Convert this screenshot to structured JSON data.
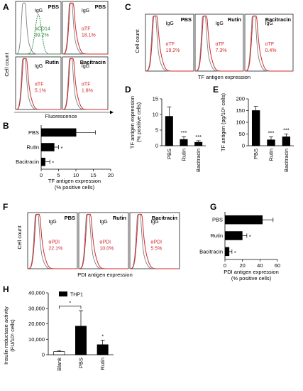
{
  "colors": {
    "red": "#d0282c",
    "green": "#2e8b3e",
    "black": "#000000",
    "gray": "#7f7f7f"
  },
  "panels": {
    "A": {
      "letter": "A",
      "ylabel": "Cell count",
      "xlabel": "Fluorescence",
      "boxes": [
        {
          "title": "PBS",
          "igg": "IgG",
          "marker": "αCD14",
          "pct": "99.2%"
        },
        {
          "title": "PBS",
          "igg": "IgG",
          "marker": "αTF",
          "pct": "18.1%"
        },
        {
          "title": "Rutin",
          "igg": "IgG",
          "marker": "αTF",
          "pct": "5.1%"
        },
        {
          "title": "Bacitracin",
          "igg": "IgG",
          "marker": "αTF",
          "pct": "1.8%"
        }
      ]
    },
    "B": {
      "letter": "B",
      "xlabel1": "TF antigen expression",
      "xlabel2": "(% positive cells)"
    },
    "C": {
      "letter": "C",
      "ylabel": "Cell count",
      "xlabel": "TF antigen expression",
      "boxes": [
        {
          "title": "PBS",
          "igg": "IgG",
          "marker": "αTF",
          "pct": "19.2%"
        },
        {
          "title": "Rutin",
          "igg": "IgG",
          "marker": "αTF",
          "pct": "7.3%"
        },
        {
          "title": "Bacitracin",
          "igg": "IgG",
          "marker": "αTF",
          "pct": "0.4%"
        }
      ]
    },
    "D": {
      "letter": "D",
      "ylabel1": "TF antigen expression",
      "ylabel2": "(% positive cells)"
    },
    "E": {
      "letter": "E",
      "ylabel": "TF antigen (pg/10⁶ cells)"
    },
    "F": {
      "letter": "F",
      "ylabel": "Cell count",
      "xlabel": "PDI antigen expression",
      "boxes": [
        {
          "title": "PBS",
          "igg": "IgG",
          "marker": "αPDI",
          "pct": "22.1%"
        },
        {
          "title": "Rutin",
          "igg": "IgG",
          "marker": "αPDI",
          "pct": "10.0%"
        },
        {
          "title": "Bacitracin",
          "igg": "IgG",
          "marker": "αPDI",
          "pct": "5.5%"
        }
      ]
    },
    "G": {
      "letter": "G",
      "xlabel1": "PDI antigen expression",
      "xlabel2": "(% positive cells)"
    },
    "H": {
      "letter": "H",
      "ylabel1": "Insulin reductase activity",
      "ylabel2": "(FU/10⁶ cells)",
      "legend": "THP1"
    }
  },
  "chart_data": [
    {
      "type": "bar",
      "orientation": "horizontal",
      "panel": "B",
      "categories": [
        "PBS",
        "Rutin",
        "Bacitracin"
      ],
      "values": [
        10.1,
        3.8,
        1.2
      ],
      "errors": [
        5.5,
        1.2,
        1.3
      ],
      "significance": [
        "",
        "*",
        "*"
      ],
      "xlim": [
        0,
        20
      ],
      "xticks": [
        "0",
        "5",
        "10",
        "15",
        "20"
      ]
    },
    {
      "type": "bar",
      "panel": "D",
      "categories": [
        "PBS",
        "Rutin",
        "Bacitracin"
      ],
      "values": [
        9.4,
        2.0,
        1.1
      ],
      "errors": [
        3.0,
        0.9,
        0.5
      ],
      "significance": [
        "",
        "***",
        "***"
      ],
      "ylim": [
        0,
        15
      ],
      "yticks": [
        "0",
        "5",
        "10",
        "15"
      ]
    },
    {
      "type": "bar",
      "panel": "E",
      "categories": [
        "PBS",
        "Rutin",
        "Bacitracin"
      ],
      "values": [
        150,
        25,
        38
      ],
      "errors": [
        18,
        13,
        12
      ],
      "significance": [
        "",
        "***",
        "***"
      ],
      "ylim": [
        0,
        200
      ],
      "yticks": [
        "0",
        "50",
        "100",
        "150",
        "200"
      ]
    },
    {
      "type": "bar",
      "orientation": "horizontal",
      "panel": "G",
      "categories": [
        "PBS",
        "Rutin",
        "Bacitracin"
      ],
      "values": [
        43,
        20,
        5
      ],
      "errors": [
        12,
        5,
        3
      ],
      "significance": [
        "",
        "*",
        "*"
      ],
      "xlim": [
        0,
        60
      ],
      "xticks": [
        "0",
        "20",
        "40",
        "60"
      ]
    },
    {
      "type": "bar",
      "panel": "H",
      "categories": [
        "Blank",
        "PBS",
        "Rutin"
      ],
      "values": [
        2000,
        18500,
        6500
      ],
      "errors": [
        600,
        10000,
        3000
      ],
      "significance": [
        "",
        "*",
        "*"
      ],
      "colors": [
        "#ffffff",
        "#000000",
        "#000000"
      ],
      "ylim": [
        0,
        40000
      ],
      "yticks": [
        "0",
        "10,000",
        "20,000",
        "30,000",
        "40,000"
      ]
    }
  ]
}
